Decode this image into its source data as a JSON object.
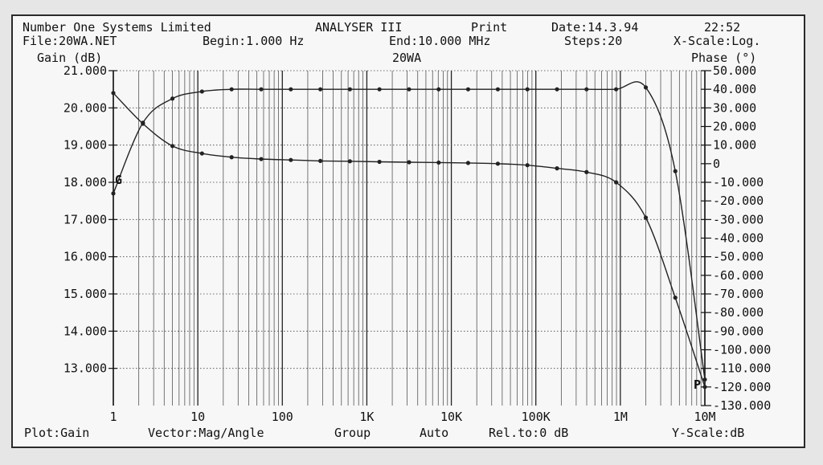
{
  "header": {
    "company": "Number One Systems Limited",
    "product": "ANALYSER III",
    "mode": "Print",
    "date": "Date:14.3.94",
    "time": "22:52",
    "file": "File:20WA.NET",
    "begin": "Begin:1.000 Hz",
    "end": "End:10.000 MHz",
    "steps": "Steps:20",
    "xscale": "X-Scale:Log."
  },
  "footer": {
    "plot": "Plot:Gain",
    "vector": "Vector:Mag/Angle",
    "group": "Group",
    "auto": "Auto",
    "rel": "Rel.to:0 dB",
    "yscale": "Y-Scale:dB"
  },
  "chart_data": {
    "type": "line",
    "title": "20WA",
    "xscale": "log",
    "xlim": [
      1,
      10000000
    ],
    "x_tick_labels": [
      "1",
      "10",
      "100",
      "1K",
      "10K",
      "100K",
      "1M",
      "10M"
    ],
    "left_axis": {
      "label": "Gain (dB)",
      "ylim": [
        12,
        21
      ],
      "tick_labels": [
        "21.000",
        "20.000",
        "19.000",
        "18.000",
        "17.000",
        "16.000",
        "15.000",
        "14.000",
        "13.000"
      ]
    },
    "right_axis": {
      "label": "Phase (°)",
      "ylim": [
        -130,
        50
      ],
      "tick_labels": [
        "50.000",
        "40.000",
        "30.000",
        "20.000",
        "10.000",
        "0",
        "-10.000",
        "-20.000",
        "-30.000",
        "-40.000",
        "-50.000",
        "-60.000",
        "-70.000",
        "-80.000",
        "-90.000",
        "-100.000",
        "-110.000",
        "-120.000",
        "-130.000"
      ]
    },
    "series": [
      {
        "marker": "G",
        "axis": "left",
        "x": [
          1,
          2.24,
          5.01,
          11.2,
          25.1,
          56.2,
          126,
          282,
          631,
          1410,
          3160,
          7080,
          15800,
          35500,
          79400,
          178000,
          398000,
          891000,
          2000000,
          4470000,
          10000000
        ],
        "y": [
          17.7,
          19.6,
          20.25,
          20.44,
          20.5,
          20.5,
          20.5,
          20.5,
          20.5,
          20.5,
          20.5,
          20.5,
          20.5,
          20.5,
          20.5,
          20.5,
          20.5,
          20.5,
          20.55,
          18.3,
          12.7
        ]
      },
      {
        "marker": "P",
        "axis": "right",
        "x": [
          1,
          2.24,
          5.01,
          11.2,
          25.1,
          56.2,
          126,
          282,
          631,
          1410,
          3160,
          7080,
          15800,
          35500,
          79400,
          178000,
          398000,
          891000,
          2000000,
          4470000,
          10000000
        ],
        "y": [
          38,
          21.5,
          9.5,
          5.5,
          3.5,
          2.5,
          2.0,
          1.5,
          1.3,
          1.0,
          0.8,
          0.6,
          0.4,
          0.0,
          -0.8,
          -2.5,
          -4.5,
          -10.0,
          -29.0,
          -72.0,
          -120.0
        ]
      }
    ],
    "grid": true
  }
}
